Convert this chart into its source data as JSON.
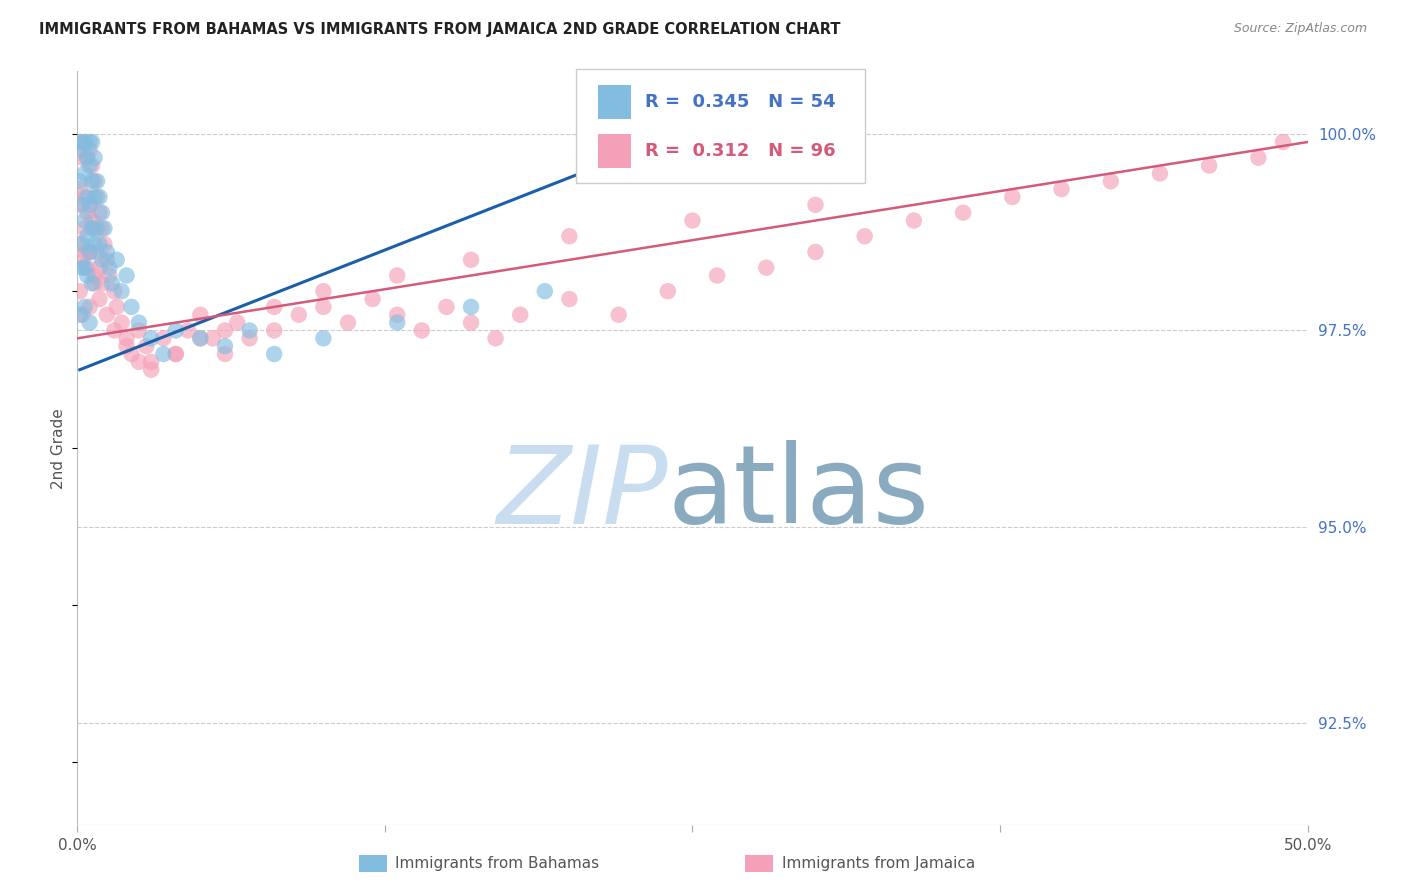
{
  "title": "IMMIGRANTS FROM BAHAMAS VS IMMIGRANTS FROM JAMAICA 2ND GRADE CORRELATION CHART",
  "source": "Source: ZipAtlas.com",
  "ylabel": "2nd Grade",
  "ytick_labels": [
    "100.0%",
    "97.5%",
    "95.0%",
    "92.5%"
  ],
  "ytick_values": [
    1.0,
    0.975,
    0.95,
    0.925
  ],
  "xmin": 0.0,
  "xmax": 0.5,
  "ymin": 0.912,
  "ymax": 1.008,
  "legend_R_bahamas": "0.345",
  "legend_N_bahamas": "54",
  "legend_R_jamaica": "0.312",
  "legend_N_jamaica": "96",
  "bahamas_color": "#82bde0",
  "jamaica_color": "#f4a0b8",
  "bahamas_line_color": "#1a5fa8",
  "jamaica_line_color": "#d45a7a",
  "watermark_zip_color": "#c8ddf0",
  "watermark_atlas_color": "#8aaabf",
  "grid_color": "#cccccc",
  "bahamas_x": [
    0.001,
    0.001,
    0.002,
    0.002,
    0.002,
    0.003,
    0.003,
    0.003,
    0.003,
    0.004,
    0.004,
    0.004,
    0.005,
    0.005,
    0.005,
    0.005,
    0.006,
    0.006,
    0.006,
    0.007,
    0.007,
    0.007,
    0.008,
    0.008,
    0.009,
    0.009,
    0.01,
    0.01,
    0.011,
    0.012,
    0.013,
    0.014,
    0.016,
    0.018,
    0.02,
    0.022,
    0.025,
    0.03,
    0.035,
    0.04,
    0.05,
    0.06,
    0.07,
    0.08,
    0.1,
    0.13,
    0.16,
    0.19,
    0.001,
    0.002,
    0.003,
    0.004,
    0.005,
    0.006
  ],
  "bahamas_y": [
    0.999,
    0.994,
    0.998,
    0.991,
    0.986,
    0.999,
    0.995,
    0.989,
    0.983,
    0.997,
    0.992,
    0.987,
    0.999,
    0.996,
    0.991,
    0.985,
    0.999,
    0.994,
    0.988,
    0.997,
    0.992,
    0.986,
    0.994,
    0.988,
    0.992,
    0.986,
    0.99,
    0.984,
    0.988,
    0.985,
    0.983,
    0.981,
    0.984,
    0.98,
    0.982,
    0.978,
    0.976,
    0.974,
    0.972,
    0.975,
    0.974,
    0.973,
    0.975,
    0.972,
    0.974,
    0.976,
    0.978,
    0.98,
    0.977,
    0.983,
    0.978,
    0.982,
    0.976,
    0.981
  ],
  "jamaica_x": [
    0.001,
    0.001,
    0.001,
    0.002,
    0.002,
    0.002,
    0.003,
    0.003,
    0.003,
    0.004,
    0.004,
    0.004,
    0.005,
    0.005,
    0.005,
    0.005,
    0.006,
    0.006,
    0.007,
    0.007,
    0.007,
    0.008,
    0.008,
    0.009,
    0.009,
    0.01,
    0.01,
    0.011,
    0.012,
    0.013,
    0.015,
    0.016,
    0.018,
    0.02,
    0.022,
    0.025,
    0.028,
    0.03,
    0.035,
    0.04,
    0.045,
    0.05,
    0.055,
    0.06,
    0.065,
    0.07,
    0.08,
    0.09,
    0.1,
    0.11,
    0.12,
    0.13,
    0.14,
    0.15,
    0.16,
    0.17,
    0.18,
    0.2,
    0.22,
    0.24,
    0.26,
    0.28,
    0.3,
    0.32,
    0.34,
    0.36,
    0.38,
    0.4,
    0.42,
    0.44,
    0.46,
    0.48,
    0.49,
    0.003,
    0.005,
    0.007,
    0.009,
    0.012,
    0.015,
    0.02,
    0.025,
    0.03,
    0.04,
    0.05,
    0.06,
    0.08,
    0.1,
    0.13,
    0.16,
    0.2,
    0.25,
    0.3,
    0.001,
    0.002
  ],
  "jamaica_y": [
    0.999,
    0.993,
    0.986,
    0.997,
    0.991,
    0.984,
    0.999,
    0.992,
    0.985,
    0.997,
    0.99,
    0.983,
    0.998,
    0.991,
    0.985,
    0.978,
    0.996,
    0.989,
    0.994,
    0.988,
    0.981,
    0.992,
    0.985,
    0.99,
    0.983,
    0.988,
    0.981,
    0.986,
    0.984,
    0.982,
    0.98,
    0.978,
    0.976,
    0.974,
    0.972,
    0.975,
    0.973,
    0.971,
    0.974,
    0.972,
    0.975,
    0.977,
    0.974,
    0.972,
    0.976,
    0.974,
    0.975,
    0.977,
    0.978,
    0.976,
    0.979,
    0.977,
    0.975,
    0.978,
    0.976,
    0.974,
    0.977,
    0.979,
    0.977,
    0.98,
    0.982,
    0.983,
    0.985,
    0.987,
    0.989,
    0.99,
    0.992,
    0.993,
    0.994,
    0.995,
    0.996,
    0.997,
    0.999,
    0.988,
    0.985,
    0.982,
    0.979,
    0.977,
    0.975,
    0.973,
    0.971,
    0.97,
    0.972,
    0.974,
    0.975,
    0.978,
    0.98,
    0.982,
    0.984,
    0.987,
    0.989,
    0.991,
    0.98,
    0.977
  ],
  "bahamas_line_x": [
    0.001,
    0.245
  ],
  "bahamas_line_y": [
    0.97,
    1.0
  ],
  "jamaica_line_x": [
    0.0,
    0.5
  ],
  "jamaica_line_y": [
    0.974,
    0.999
  ]
}
